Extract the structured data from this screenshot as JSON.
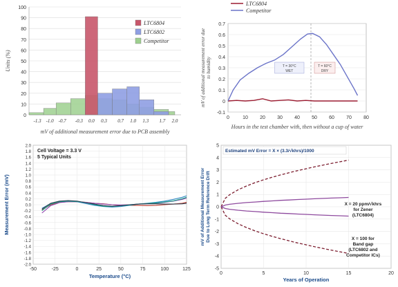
{
  "chart_data": [
    {
      "type": "bar",
      "panel": "top-left",
      "xlabel": "mV of additional measurement error due to PCB assembly",
      "ylabel": "Units (%)",
      "ylim": [
        0,
        100
      ],
      "yticks": [
        0,
        10,
        20,
        30,
        40,
        50,
        60,
        70,
        80,
        90,
        100
      ],
      "xticks": [
        "-1.3",
        "-1.0",
        "-0.7",
        "-0.3",
        "0.0",
        "0.3",
        "0.7",
        "1.0",
        "1.3",
        "1.7",
        "2.0"
      ],
      "legend_position": "top-right",
      "series": [
        {
          "name": "LTC6804",
          "color": "#c8566a",
          "values": [
            [
              -0.15,
              0.15,
              91
            ]
          ]
        },
        {
          "name": "LTC6802",
          "color": "#8f9fe3",
          "values": [
            [
              0.15,
              0.5,
              20
            ],
            [
              0.5,
              0.85,
              24
            ],
            [
              0.85,
              1.15,
              26
            ],
            [
              1.15,
              1.5,
              14
            ],
            [
              1.5,
              1.85,
              3
            ]
          ]
        },
        {
          "name": "Competitor",
          "color": "#9ed08f",
          "values": [
            [
              -1.5,
              -1.15,
              2
            ],
            [
              -1.15,
              -0.85,
              6
            ],
            [
              -0.85,
              -0.5,
              11
            ],
            [
              -0.5,
              -0.15,
              15
            ],
            [
              -0.15,
              0.15,
              18
            ],
            [
              0.15,
              0.5,
              15
            ],
            [
              0.5,
              0.85,
              14
            ],
            [
              0.85,
              1.15,
              10
            ],
            [
              1.15,
              1.5,
              7
            ],
            [
              1.5,
              1.85,
              5
            ],
            [
              1.85,
              2.0,
              3
            ]
          ]
        }
      ]
    },
    {
      "type": "line",
      "panel": "top-right",
      "xlabel": "Hours in the test chamber with, then without a cup of water",
      "ylabel": "mV of additional measurement error due to humidity",
      "xlim": [
        0,
        80
      ],
      "ylim": [
        -0.1,
        0.7
      ],
      "xticks": [
        0,
        10,
        20,
        30,
        40,
        50,
        60,
        70,
        80
      ],
      "yticks": [
        -0.1,
        0,
        0.1,
        0.2,
        0.3,
        0.4,
        0.5,
        0.6,
        0.7
      ],
      "legend_position": "top-left outside",
      "annotations": {
        "wet": "T = 30°C WET",
        "dry": "T = 60°C DRY"
      },
      "series": [
        {
          "name": "LTC6804",
          "color": "#9b1b30",
          "x": [
            0,
            5,
            10,
            15,
            20,
            25,
            30,
            35,
            40,
            45,
            50,
            55,
            60,
            65,
            70,
            75
          ],
          "y": [
            0.0,
            0.005,
            0.0,
            0.005,
            0.02,
            0.0,
            0.005,
            0.01,
            0.0,
            0.005,
            0.0,
            0.0,
            0.0,
            0.0,
            0.0,
            0.0
          ]
        },
        {
          "name": "Competitor",
          "color": "#6a73c8",
          "x": [
            0,
            3,
            7,
            12,
            17,
            22,
            27,
            32,
            37,
            42,
            46,
            49,
            53,
            57,
            61,
            65,
            69,
            73,
            75
          ],
          "y": [
            0.0,
            0.1,
            0.19,
            0.25,
            0.3,
            0.34,
            0.37,
            0.42,
            0.49,
            0.56,
            0.605,
            0.61,
            0.58,
            0.51,
            0.42,
            0.33,
            0.22,
            0.11,
            0.05
          ]
        }
      ]
    },
    {
      "type": "line",
      "panel": "bottom-left",
      "xlabel": "Temperature (°C)",
      "ylabel": "Measurement Error (mV)",
      "xlim": [
        -50,
        125
      ],
      "ylim": [
        -2.0,
        2.0
      ],
      "xticks": [
        -50,
        -25,
        0,
        25,
        50,
        75,
        100,
        125
      ],
      "yticks": [
        -2.0,
        -1.8,
        -1.6,
        -1.4,
        -1.2,
        -1.0,
        -0.8,
        -0.6,
        -0.4,
        -0.2,
        0,
        0.2,
        0.4,
        0.6,
        0.8,
        1.0,
        1.2,
        1.4,
        1.6,
        1.8,
        2.0
      ],
      "annotation_lines": [
        "Cell Voltage = 3.3 V",
        "5 Typical Units"
      ],
      "series": [
        {
          "color": "#c0392b",
          "x": [
            -40,
            -30,
            -20,
            -10,
            0,
            10,
            20,
            30,
            40,
            50,
            60,
            70,
            80,
            90,
            100,
            110,
            120,
            125
          ],
          "y": [
            -0.18,
            0.0,
            0.08,
            0.1,
            0.1,
            0.08,
            0.05,
            0.03,
            0.0,
            -0.02,
            -0.02,
            -0.02,
            -0.03,
            -0.02,
            0.0,
            0.02,
            0.05,
            0.08
          ]
        },
        {
          "color": "#8e44ad",
          "x": [
            -40,
            -30,
            -20,
            -10,
            0,
            10,
            20,
            30,
            40,
            50,
            60,
            70,
            80,
            90,
            100,
            110,
            120,
            125
          ],
          "y": [
            -0.28,
            -0.03,
            0.07,
            0.1,
            0.1,
            0.08,
            0.05,
            0.02,
            0.0,
            -0.01,
            0.0,
            0.02,
            0.03,
            0.05,
            0.08,
            0.12,
            0.18,
            0.22
          ]
        },
        {
          "color": "#2e86c1",
          "x": [
            -40,
            -30,
            -20,
            -10,
            0,
            10,
            20,
            30,
            40,
            50,
            60,
            70,
            80,
            90,
            100,
            110,
            120,
            125
          ],
          "y": [
            -0.12,
            0.04,
            0.1,
            0.12,
            0.1,
            0.04,
            -0.02,
            -0.06,
            -0.08,
            -0.06,
            -0.02,
            0.02,
            0.05,
            0.08,
            0.12,
            0.18,
            0.25,
            0.3
          ]
        },
        {
          "color": "#17a589",
          "x": [
            -40,
            -30,
            -20,
            -10,
            0,
            10,
            20,
            30,
            40,
            50,
            60,
            70,
            80,
            90,
            100,
            110,
            120,
            125
          ],
          "y": [
            -0.2,
            0.02,
            0.1,
            0.12,
            0.11,
            0.07,
            0.0,
            -0.05,
            -0.06,
            -0.04,
            -0.01,
            0.02,
            0.04,
            0.06,
            0.09,
            0.13,
            0.2,
            0.25
          ]
        },
        {
          "color": "#2c3e50",
          "x": [
            -40,
            -30,
            -20,
            -10,
            0,
            10,
            20,
            30,
            40,
            50,
            60,
            70,
            80,
            90,
            100,
            110,
            120,
            125
          ],
          "y": [
            -0.15,
            0.05,
            0.12,
            0.14,
            0.12,
            0.07,
            0.02,
            -0.03,
            -0.05,
            -0.03,
            0.0,
            0.02,
            0.03,
            0.03,
            0.02,
            0.02,
            0.03,
            0.05
          ]
        }
      ]
    },
    {
      "type": "line",
      "panel": "bottom-right",
      "xlabel": "Years of Operation",
      "ylabel": "mV of Additional Measurement Error Due to Long Term Reference Drift",
      "xlim": [
        0,
        20
      ],
      "ylim": [
        -5,
        5
      ],
      "xticks": [
        0,
        5,
        10,
        15,
        20
      ],
      "yticks": [
        -5,
        -4,
        -3,
        -2,
        -1,
        0,
        1,
        2,
        3,
        4,
        5
      ],
      "formula": "Estimated mV Error = X × (3.3/√khrs)/1000",
      "annotations": {
        "zener": [
          "X = 20 ppm/√khrs",
          "for Zener",
          "(LTC6804)"
        ],
        "bandgap": [
          "X = 100 for",
          "Band gap",
          "(LTC6802 and",
          "Competitor ICs)"
        ]
      },
      "series": [
        {
          "style": "dashed",
          "color": "#7b1c2e",
          "x": [
            0,
            0.5,
            1,
            2,
            3,
            4,
            5,
            6,
            7,
            8,
            9,
            10,
            11,
            12,
            13,
            14,
            15
          ],
          "y": [
            0,
            0.69,
            0.98,
            1.38,
            1.69,
            1.96,
            2.19,
            2.4,
            2.59,
            2.77,
            2.94,
            3.09,
            3.25,
            3.39,
            3.53,
            3.66,
            3.79
          ]
        },
        {
          "style": "dashed",
          "color": "#7b1c2e",
          "x": [
            0,
            0.5,
            1,
            2,
            3,
            4,
            5,
            6,
            7,
            8,
            9,
            10,
            11,
            12,
            13,
            14,
            15
          ],
          "y": [
            0,
            -0.69,
            -0.98,
            -1.38,
            -1.69,
            -1.96,
            -2.19,
            -2.4,
            -2.59,
            -2.77,
            -2.94,
            -3.09,
            -3.25,
            -3.39,
            -3.53,
            -3.66,
            -3.79
          ]
        },
        {
          "style": "solid",
          "color": "#8e4a9e",
          "x": [
            0,
            0.5,
            1,
            2,
            3,
            4,
            5,
            6,
            7,
            8,
            9,
            10,
            11,
            12,
            13,
            14,
            15
          ],
          "y": [
            0,
            0.14,
            0.2,
            0.28,
            0.34,
            0.39,
            0.44,
            0.48,
            0.52,
            0.55,
            0.59,
            0.62,
            0.65,
            0.68,
            0.71,
            0.73,
            0.76
          ]
        },
        {
          "style": "solid",
          "color": "#8e4a9e",
          "x": [
            0,
            0.5,
            1,
            2,
            3,
            4,
            5,
            6,
            7,
            8,
            9,
            10,
            11,
            12,
            13,
            14,
            15
          ],
          "y": [
            0,
            -0.14,
            -0.2,
            -0.28,
            -0.34,
            -0.39,
            -0.44,
            -0.48,
            -0.52,
            -0.55,
            -0.59,
            -0.62,
            -0.65,
            -0.68,
            -0.71,
            -0.73,
            -0.76
          ]
        }
      ]
    }
  ]
}
